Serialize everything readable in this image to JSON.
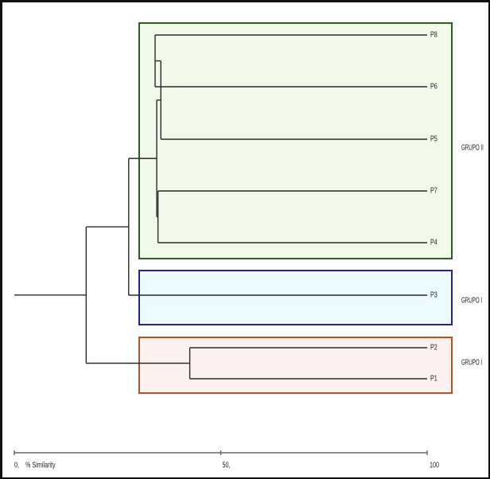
{
  "leaves": [
    "P8",
    "P6",
    "P5",
    "P7",
    "P4",
    "P3",
    "P2",
    "P1"
  ],
  "groups": [
    {
      "label": "GRUPO II",
      "color": "#2e5e24",
      "fill": "#f1f9e9",
      "members": [
        "P8",
        "P6",
        "P5",
        "P7",
        "P4"
      ]
    },
    {
      "label": "GRUPO I",
      "color": "#23238c",
      "fill": "#ebfbff",
      "members": [
        "P3"
      ]
    },
    {
      "label": "GRUPO I",
      "color": "#b0552a",
      "fill": "#fdf1ef",
      "members": [
        "P2",
        "P1"
      ]
    }
  ],
  "axis": {
    "label": "% Similarity",
    "ticks": [
      {
        "value": 0,
        "label": "0,"
      },
      {
        "value": 50,
        "label": "50,"
      },
      {
        "value": 100,
        "label": "100"
      }
    ]
  },
  "chart_data": {
    "type": "dendrogram",
    "xlabel": "% Similarity",
    "xlim": [
      0,
      100
    ],
    "merges": [
      {
        "left": "P8",
        "right": "P6",
        "similarity": 34.1
      },
      {
        "left": "P7",
        "right": "P4",
        "similarity": 34.8
      },
      {
        "left": "P8+P6",
        "right": "P5",
        "similarity": 35.5
      },
      {
        "left": "P8+P6+P5",
        "right": "P7+P4",
        "similarity": 34.5
      },
      {
        "left": "P8+P6+P5+P7+P4",
        "right": "P3",
        "similarity": 27.7
      },
      {
        "left": "P2",
        "right": "P1",
        "similarity": 42.5
      },
      {
        "left": "P8+P6+P5+P7+P4+P3",
        "right": "P2+P1",
        "similarity": 17.4
      },
      {
        "left": "all",
        "right": "root",
        "similarity": 0
      }
    ]
  }
}
